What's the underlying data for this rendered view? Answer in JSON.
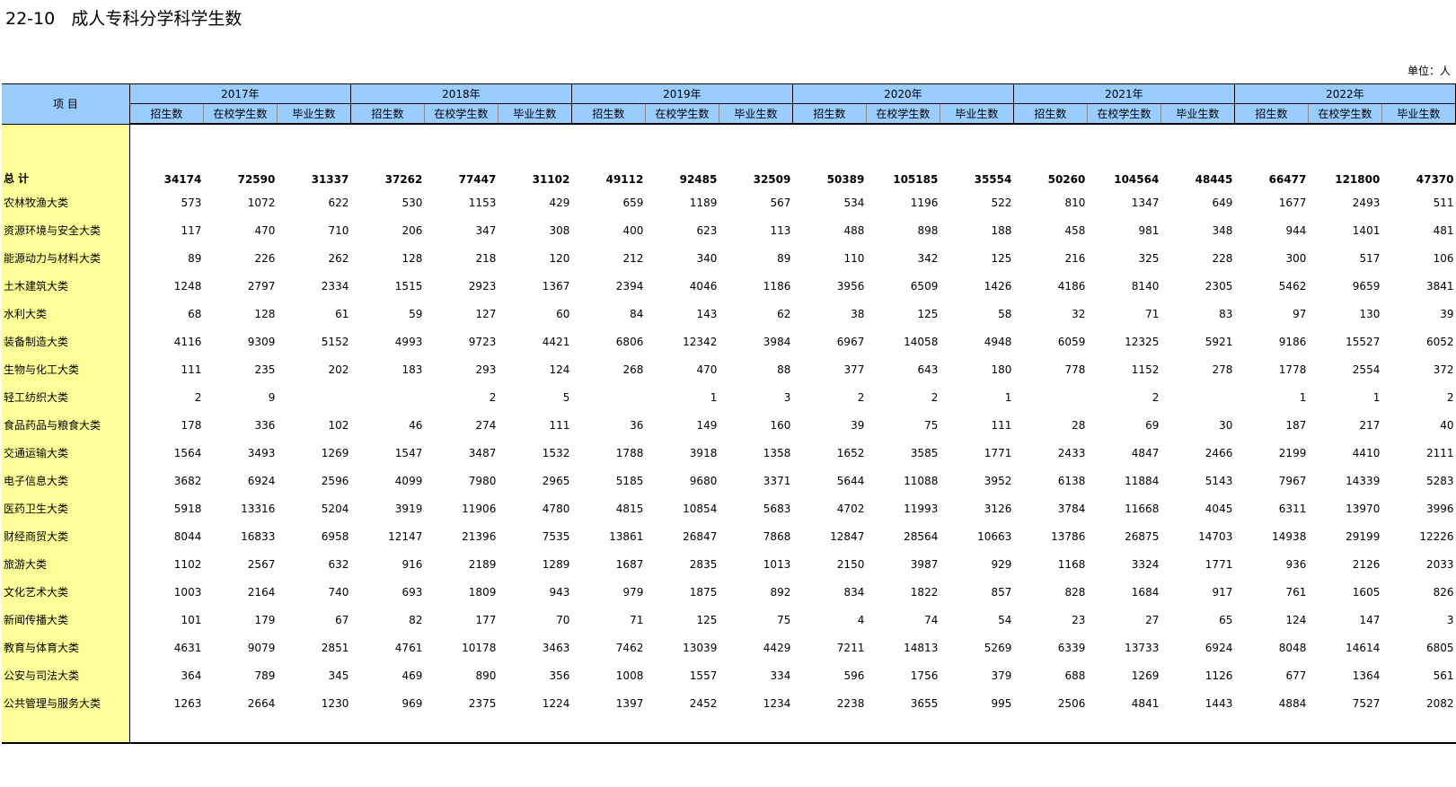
{
  "title": "22-10   成人专科分学科学生数",
  "unit": "单位：人",
  "header": {
    "item_label": "项    目",
    "years": [
      "2017年",
      "2018年",
      "2019年",
      "2020年",
      "2021年",
      "2022年"
    ],
    "sub_labels": [
      "招生数",
      "在校学生数",
      "毕业生数"
    ]
  },
  "total": {
    "name": "总    计",
    "values": [
      "34174",
      "72590",
      "31337",
      "37262",
      "77447",
      "31102",
      "49112",
      "92485",
      "32509",
      "50389",
      "105185",
      "35554",
      "50260",
      "104564",
      "48445",
      "66477",
      "121800",
      "47370"
    ]
  },
  "rows": [
    {
      "name": "农林牧渔大类",
      "values": [
        "573",
        "1072",
        "622",
        "530",
        "1153",
        "429",
        "659",
        "1189",
        "567",
        "534",
        "1196",
        "522",
        "810",
        "1347",
        "649",
        "1677",
        "2493",
        "511"
      ]
    },
    {
      "name": "资源环境与安全大类",
      "values": [
        "117",
        "470",
        "710",
        "206",
        "347",
        "308",
        "400",
        "623",
        "113",
        "488",
        "898",
        "188",
        "458",
        "981",
        "348",
        "944",
        "1401",
        "481"
      ]
    },
    {
      "name": "能源动力与材料大类",
      "values": [
        "89",
        "226",
        "262",
        "128",
        "218",
        "120",
        "212",
        "340",
        "89",
        "110",
        "342",
        "125",
        "216",
        "325",
        "228",
        "300",
        "517",
        "106"
      ]
    },
    {
      "name": "土木建筑大类",
      "values": [
        "1248",
        "2797",
        "2334",
        "1515",
        "2923",
        "1367",
        "2394",
        "4046",
        "1186",
        "3956",
        "6509",
        "1426",
        "4186",
        "8140",
        "2305",
        "5462",
        "9659",
        "3841"
      ]
    },
    {
      "name": "水利大类",
      "values": [
        "68",
        "128",
        "61",
        "59",
        "127",
        "60",
        "84",
        "143",
        "62",
        "38",
        "125",
        "58",
        "32",
        "71",
        "83",
        "97",
        "130",
        "39"
      ]
    },
    {
      "name": "装备制造大类",
      "values": [
        "4116",
        "9309",
        "5152",
        "4993",
        "9723",
        "4421",
        "6806",
        "12342",
        "3984",
        "6967",
        "14058",
        "4948",
        "6059",
        "12325",
        "5921",
        "9186",
        "15527",
        "6052"
      ]
    },
    {
      "name": "生物与化工大类",
      "values": [
        "111",
        "235",
        "202",
        "183",
        "293",
        "124",
        "268",
        "470",
        "88",
        "377",
        "643",
        "180",
        "778",
        "1152",
        "278",
        "1778",
        "2554",
        "372"
      ]
    },
    {
      "name": "轻工纺织大类",
      "values": [
        "2",
        "9",
        "",
        "",
        "2",
        "5",
        "",
        "1",
        "3",
        "2",
        "2",
        "1",
        "",
        "2",
        "",
        "1",
        "1",
        "2"
      ]
    },
    {
      "name": "食品药品与粮食大类",
      "values": [
        "178",
        "336",
        "102",
        "46",
        "274",
        "111",
        "36",
        "149",
        "160",
        "39",
        "75",
        "111",
        "28",
        "69",
        "30",
        "187",
        "217",
        "40"
      ]
    },
    {
      "name": "交通运输大类",
      "values": [
        "1564",
        "3493",
        "1269",
        "1547",
        "3487",
        "1532",
        "1788",
        "3918",
        "1358",
        "1652",
        "3585",
        "1771",
        "2433",
        "4847",
        "2466",
        "2199",
        "4410",
        "2111"
      ]
    },
    {
      "name": "电子信息大类",
      "values": [
        "3682",
        "6924",
        "2596",
        "4099",
        "7980",
        "2965",
        "5185",
        "9680",
        "3371",
        "5644",
        "11088",
        "3952",
        "6138",
        "11884",
        "5143",
        "7967",
        "14339",
        "5283"
      ]
    },
    {
      "name": "医药卫生大类",
      "values": [
        "5918",
        "13316",
        "5204",
        "3919",
        "11906",
        "4780",
        "4815",
        "10854",
        "5683",
        "4702",
        "11993",
        "3126",
        "3784",
        "11668",
        "4045",
        "6311",
        "13970",
        "3996"
      ]
    },
    {
      "name": "财经商贸大类",
      "values": [
        "8044",
        "16833",
        "6958",
        "12147",
        "21396",
        "7535",
        "13861",
        "26847",
        "7868",
        "12847",
        "28564",
        "10663",
        "13786",
        "26875",
        "14703",
        "14938",
        "29199",
        "12226"
      ]
    },
    {
      "name": "旅游大类",
      "values": [
        "1102",
        "2567",
        "632",
        "916",
        "2189",
        "1289",
        "1687",
        "2835",
        "1013",
        "2150",
        "3987",
        "929",
        "1168",
        "3324",
        "1771",
        "936",
        "2126",
        "2033"
      ]
    },
    {
      "name": "文化艺术大类",
      "values": [
        "1003",
        "2164",
        "740",
        "693",
        "1809",
        "943",
        "979",
        "1875",
        "892",
        "834",
        "1822",
        "857",
        "828",
        "1684",
        "917",
        "761",
        "1605",
        "826"
      ]
    },
    {
      "name": "新闻传播大类",
      "values": [
        "101",
        "179",
        "67",
        "82",
        "177",
        "70",
        "71",
        "125",
        "75",
        "4",
        "74",
        "54",
        "23",
        "27",
        "65",
        "124",
        "147",
        "3"
      ]
    },
    {
      "name": "教育与体育大类",
      "values": [
        "4631",
        "9079",
        "2851",
        "4761",
        "10178",
        "3463",
        "7462",
        "13039",
        "4429",
        "7211",
        "14813",
        "5269",
        "6339",
        "13733",
        "6924",
        "8048",
        "14614",
        "6805"
      ]
    },
    {
      "name": "公安与司法大类",
      "values": [
        "364",
        "789",
        "345",
        "469",
        "890",
        "356",
        "1008",
        "1557",
        "334",
        "596",
        "1756",
        "379",
        "688",
        "1269",
        "1126",
        "677",
        "1364",
        "561"
      ]
    },
    {
      "name": "公共管理与服务大类",
      "values": [
        "1263",
        "2664",
        "1230",
        "969",
        "2375",
        "1224",
        "1397",
        "2452",
        "1234",
        "2238",
        "3655",
        "995",
        "2506",
        "4841",
        "1443",
        "4884",
        "7527",
        "2082"
      ]
    }
  ]
}
